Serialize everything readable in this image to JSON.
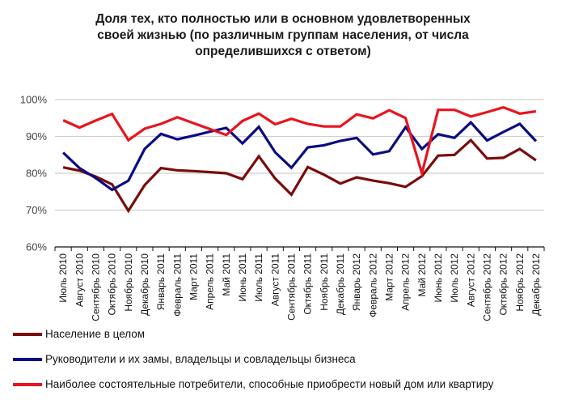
{
  "chart_data": {
    "type": "line",
    "title_lines": [
      "Доля тех, кто полностью или в основном удовлетворенных",
      "своей жизнью (по различным группам населения, от числа",
      "определившихся с ответом)"
    ],
    "xlabel": "",
    "ylabel": "",
    "ylim": [
      60,
      100
    ],
    "yticks": [
      "60%",
      "70%",
      "80%",
      "90%",
      "100%"
    ],
    "ytick_values": [
      60,
      70,
      80,
      90,
      100
    ],
    "grid": true,
    "legend_position": "bottom",
    "categories": [
      "Июль 2010",
      "Август 2010",
      "Сентябрь 2010",
      "Октябрь 2010",
      "Ноябрь 2010",
      "Декабрь 2010",
      "Январь 2011",
      "Февраль 2011",
      "Март 2011",
      "Апрель 2011",
      "Май 2011",
      "Июнь 2011",
      "Июль 2011",
      "Август 2011",
      "Сентябрь 2011",
      "Октябрь 2011",
      "Ноябрь 2011",
      "Декабрь 2011",
      "Январь 2012",
      "Февраль 2012",
      "Март 2012",
      "Апрель 2012",
      "Май 2012",
      "Июнь 2012",
      "Июль 2012",
      "Август 2012",
      "Сентябрь 2012",
      "Октябрь 2012",
      "Ноябрь 2012",
      "Декабрь 2012"
    ],
    "series": [
      {
        "name": "Население в целом",
        "color": "#7a0c0c",
        "values": [
          81.6,
          80.7,
          79.1,
          77.0,
          69.8,
          76.8,
          81.4,
          80.8,
          80.6,
          80.3,
          80.0,
          78.4,
          84.6,
          78.6,
          74.2,
          81.7,
          79.6,
          77.2,
          78.9,
          78.0,
          77.3,
          76.3,
          79.2,
          84.8,
          85.0,
          89.0,
          84.0,
          84.2,
          86.6,
          83.5
        ]
      },
      {
        "name": "Руководители и их замы, владельцы и совладельцы бизнеса",
        "color": "#0b0b82",
        "values": [
          85.6,
          81.4,
          78.7,
          75.5,
          78.0,
          86.6,
          90.7,
          89.2,
          90.2,
          91.3,
          92.3,
          88.1,
          92.6,
          85.7,
          81.5,
          87.0,
          87.6,
          88.8,
          89.6,
          85.1,
          86.0,
          92.5,
          86.6,
          90.6,
          89.6,
          93.8,
          88.9,
          91.2,
          93.4,
          88.7
        ]
      },
      {
        "name": "Наиболее состоятельные потребители, способные приобрести новый дом или квартиру",
        "color": "#e8141e",
        "values": [
          94.4,
          92.4,
          94.3,
          96.1,
          89.0,
          92.1,
          93.4,
          95.2,
          93.6,
          92.0,
          90.4,
          94.2,
          96.2,
          93.3,
          94.8,
          93.4,
          92.7,
          92.7,
          96.0,
          94.9,
          97.1,
          95.0,
          80.0,
          97.2,
          97.2,
          95.4,
          96.6,
          97.9,
          96.2,
          96.8
        ]
      }
    ]
  }
}
